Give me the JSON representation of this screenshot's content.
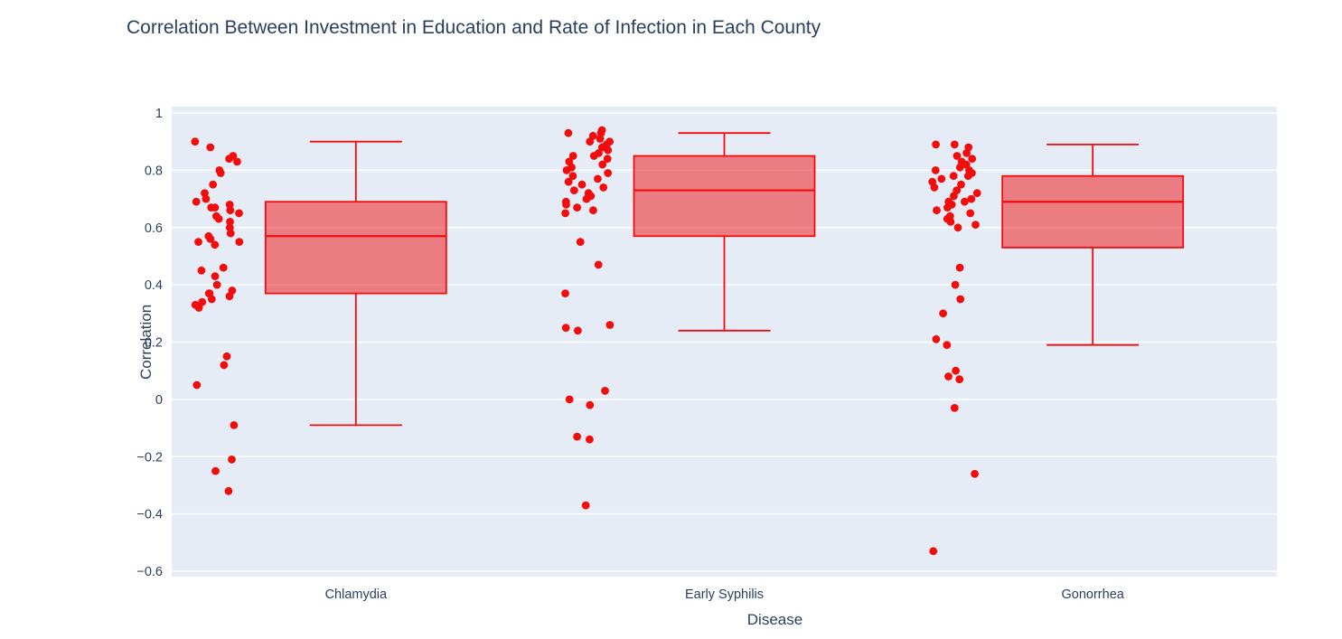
{
  "chart_data": {
    "type": "box",
    "title": "Correlation Between Investment in Education and Rate of Infection in Each County",
    "xlabel": "Disease",
    "ylabel": "Correlation",
    "ylim": [
      -0.6,
      1
    ],
    "ytick_step": 0.2,
    "grid": true,
    "legend": "none",
    "categories": [
      "Chlamydia",
      "Early Syphilis",
      "Gonorrhea"
    ],
    "series": [
      {
        "name": "Chlamydia",
        "lower_fence": -0.09,
        "q1": 0.37,
        "median": 0.57,
        "q3": 0.69,
        "upper_fence": 0.9,
        "points": [
          0.9,
          0.88,
          0.85,
          0.84,
          0.83,
          0.8,
          0.79,
          0.75,
          0.72,
          0.7,
          0.69,
          0.68,
          0.67,
          0.67,
          0.66,
          0.65,
          0.64,
          0.63,
          0.62,
          0.6,
          0.58,
          0.57,
          0.56,
          0.55,
          0.55,
          0.54,
          0.46,
          0.45,
          0.43,
          0.4,
          0.38,
          0.37,
          0.37,
          0.36,
          0.35,
          0.34,
          0.33,
          0.32,
          0.15,
          0.12,
          0.05,
          -0.09,
          -0.21,
          -0.25,
          -0.32
        ]
      },
      {
        "name": "Early Syphilis",
        "lower_fence": 0.24,
        "q1": 0.57,
        "median": 0.73,
        "q3": 0.85,
        "upper_fence": 0.93,
        "points": [
          0.94,
          0.93,
          0.93,
          0.92,
          0.91,
          0.9,
          0.9,
          0.89,
          0.88,
          0.87,
          0.86,
          0.85,
          0.85,
          0.84,
          0.83,
          0.82,
          0.81,
          0.8,
          0.79,
          0.78,
          0.77,
          0.76,
          0.75,
          0.74,
          0.73,
          0.72,
          0.71,
          0.7,
          0.69,
          0.68,
          0.67,
          0.66,
          0.65,
          0.55,
          0.47,
          0.37,
          0.26,
          0.25,
          0.24,
          0.03,
          0.0,
          -0.02,
          -0.13,
          -0.14,
          -0.37
        ]
      },
      {
        "name": "Gonorrhea",
        "lower_fence": 0.19,
        "q1": 0.53,
        "median": 0.69,
        "q3": 0.78,
        "upper_fence": 0.89,
        "points": [
          0.89,
          0.89,
          0.88,
          0.86,
          0.85,
          0.84,
          0.83,
          0.82,
          0.81,
          0.8,
          0.8,
          0.79,
          0.78,
          0.78,
          0.77,
          0.76,
          0.75,
          0.74,
          0.73,
          0.72,
          0.71,
          0.7,
          0.69,
          0.69,
          0.68,
          0.67,
          0.66,
          0.65,
          0.64,
          0.63,
          0.62,
          0.61,
          0.6,
          0.46,
          0.4,
          0.35,
          0.3,
          0.21,
          0.19,
          0.1,
          0.08,
          0.07,
          -0.03,
          -0.26,
          -0.53
        ]
      }
    ],
    "colors": {
      "marker": "#f20d0d",
      "box_fill": "rgba(242,13,13,0.5)",
      "plot_bg": "#e5ecf6",
      "grid": "#ffffff",
      "text": "#2a3f5f"
    }
  }
}
